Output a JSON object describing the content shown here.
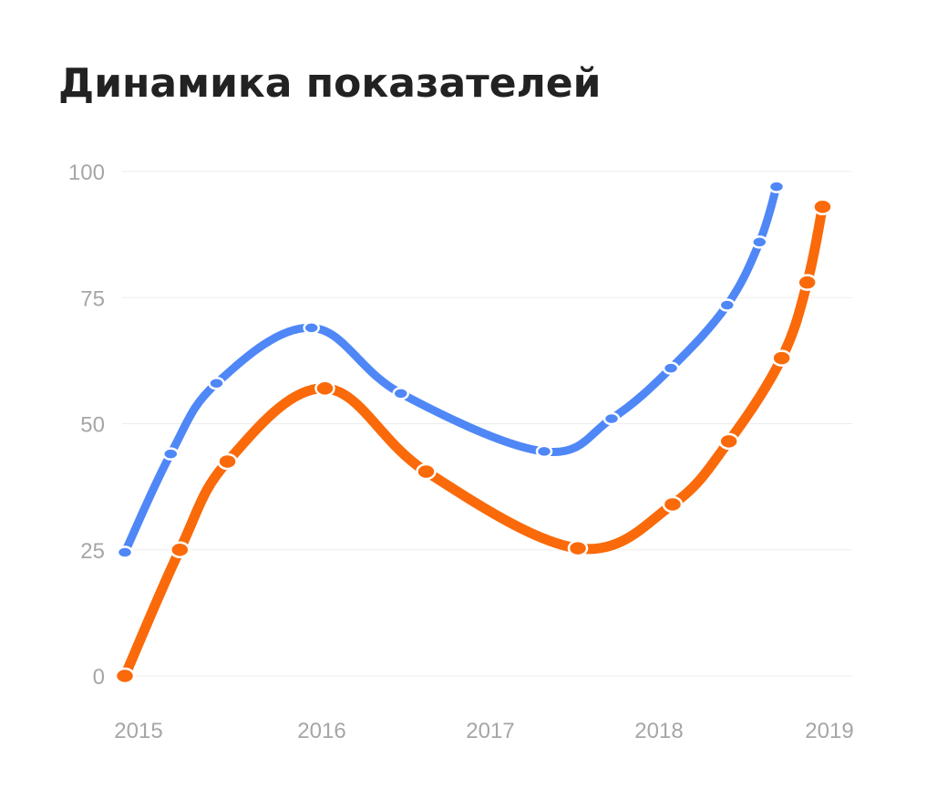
{
  "chart_data": {
    "type": "line",
    "title": "Динамика показателей",
    "xlabel": "",
    "ylabel": "",
    "x_ticks": [
      "2015",
      "2016",
      "2017",
      "2018",
      "2019"
    ],
    "y_ticks": [
      "0",
      "25",
      "50",
      "75",
      "100"
    ],
    "ylim": [
      0,
      100
    ],
    "grid": true,
    "legend": "none",
    "series": [
      {
        "color": "#4f87f7",
        "points": [
          {
            "x": 2015.0,
            "y": 24.5
          },
          {
            "x": 2015.25,
            "y": 44
          },
          {
            "x": 2015.5,
            "y": 58
          },
          {
            "x": 2016.02,
            "y": 69
          },
          {
            "x": 2016.55,
            "y": 56
          },
          {
            "x": 2017.4,
            "y": 44.5
          },
          {
            "x": 2017.8,
            "y": 51
          },
          {
            "x": 2018.15,
            "y": 61
          },
          {
            "x": 2018.48,
            "y": 73.5
          },
          {
            "x": 2018.67,
            "y": 86
          },
          {
            "x": 2018.77,
            "y": 97
          }
        ]
      },
      {
        "color": "#fa6a0a",
        "points": [
          {
            "x": 2015.0,
            "y": 0
          },
          {
            "x": 2015.3,
            "y": 25
          },
          {
            "x": 2015.56,
            "y": 42.5
          },
          {
            "x": 2016.1,
            "y": 57
          },
          {
            "x": 2016.7,
            "y": 40.5
          },
          {
            "x": 2017.6,
            "y": 25.3
          },
          {
            "x": 2018.16,
            "y": 34
          },
          {
            "x": 2018.49,
            "y": 46.5
          },
          {
            "x": 2018.8,
            "y": 63
          },
          {
            "x": 2018.95,
            "y": 78
          },
          {
            "x": 2019.04,
            "y": 93
          }
        ]
      }
    ]
  }
}
